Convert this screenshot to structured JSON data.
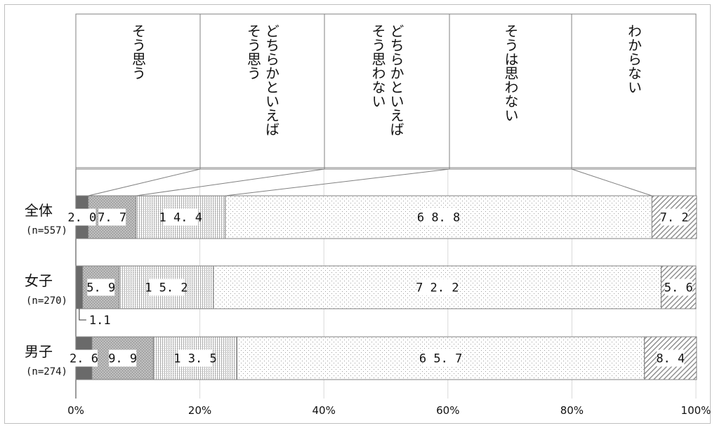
{
  "chart_data": {
    "type": "bar",
    "orientation": "horizontal-stacked-100",
    "legend": [
      "そう思う",
      "どちらかといえば\nそう思う",
      "どちらかといえば\nそう思わない",
      "そうは思わない",
      "わからない"
    ],
    "rows": [
      {
        "name": "全体",
        "n": "(n=557)",
        "values": [
          2.0,
          7.7,
          14.4,
          68.8,
          7.2
        ],
        "labels": [
          "2.0",
          "7.7",
          "14.4",
          "68.8",
          "7.2"
        ]
      },
      {
        "name": "女子",
        "n": "(n=270)",
        "values": [
          1.1,
          5.9,
          15.2,
          72.2,
          5.6
        ],
        "labels": [
          "",
          "5.9",
          "15.2",
          "72.2",
          "5.6"
        ],
        "callout": "1.1"
      },
      {
        "name": "男子",
        "n": "(n=274)",
        "values": [
          2.6,
          9.9,
          13.5,
          65.7,
          8.4
        ],
        "labels": [
          "2.6",
          "9.9",
          "13.5",
          "65.7",
          "8.4"
        ]
      }
    ],
    "xticks": [
      "0%",
      "20%",
      "40%",
      "60%",
      "80%",
      "100%"
    ],
    "xlim": [
      0,
      100
    ],
    "grid": true,
    "legend_placement": "top"
  }
}
